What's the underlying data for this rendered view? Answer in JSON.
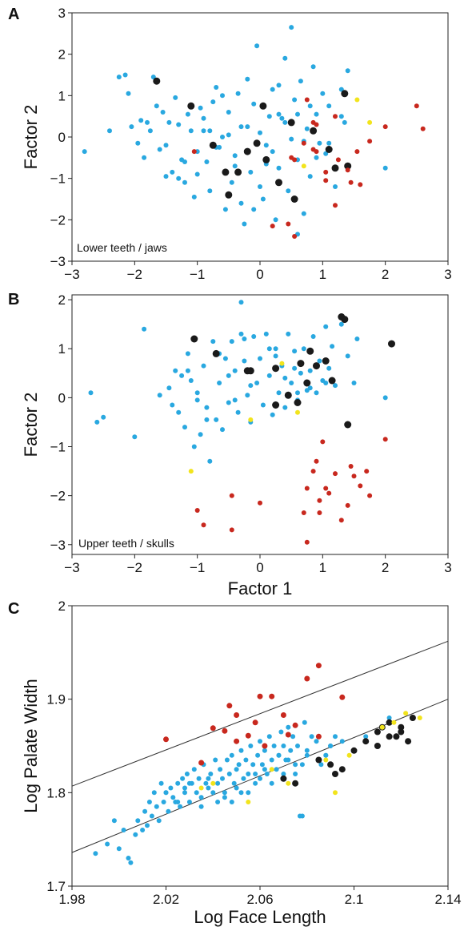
{
  "colors": {
    "blue": "#29a8e0",
    "black": "#1a1a1a",
    "red": "#c8281e",
    "yellow": "#f2e41c"
  },
  "chart_data": [
    {
      "panel": "A",
      "type": "scatter",
      "xlabel": "",
      "ylabel": "Factor 2",
      "annotation": "Lower teeth / jaws",
      "xlim": [
        -3,
        3
      ],
      "ylim": [
        -3,
        3
      ],
      "xticks": [
        "−3",
        "−2",
        "−1",
        "0",
        "1",
        "2",
        "3"
      ],
      "yticks": [
        "3",
        "2",
        "1",
        "0",
        "−1",
        "−2",
        "−3"
      ],
      "grid": false,
      "series": [
        {
          "color": "blue",
          "x": [
            -2.8,
            -2.4,
            -2.25,
            -2.15,
            -2.1,
            -2.05,
            -1.95,
            -1.9,
            -1.85,
            -1.75,
            -1.65,
            -1.6,
            -1.55,
            -1.5,
            -1.45,
            -1.4,
            -1.35,
            -1.3,
            -1.3,
            -1.25,
            -1.2,
            -1.15,
            -1.1,
            -1.05,
            -1.0,
            -0.95,
            -0.9,
            -0.85,
            -0.8,
            -0.75,
            -0.7,
            -0.65,
            -0.6,
            -0.55,
            -0.5,
            -0.45,
            -0.4,
            -0.35,
            -0.3,
            -0.25,
            -0.2,
            -0.15,
            -0.1,
            -0.05,
            0.0,
            0.05,
            0.1,
            0.15,
            0.2,
            0.25,
            0.3,
            0.35,
            0.4,
            0.45,
            0.5,
            0.55,
            0.6,
            0.65,
            0.7,
            0.75,
            0.8,
            0.85,
            0.9,
            0.95,
            1.0,
            1.05,
            1.1,
            1.2,
            1.3,
            1.35,
            1.4,
            2.0,
            -1.8,
            -1.0,
            -0.8,
            -0.6,
            -0.4,
            -0.2,
            0.0,
            0.2,
            0.4,
            0.6,
            1.1,
            1.3,
            -1.7,
            -1.5,
            -0.7,
            -0.3,
            0.1,
            0.3,
            0.5,
            0.7,
            0.9,
            -0.9,
            -0.5,
            -0.1,
            0.3,
            0.6,
            -1.2,
            0.8
          ],
          "y": [
            -0.35,
            0.15,
            1.45,
            1.5,
            1.05,
            0.25,
            -0.15,
            0.4,
            -0.5,
            0.15,
            0.75,
            -0.3,
            0.6,
            -0.95,
            0.35,
            -0.85,
            0.95,
            -1.0,
            0.3,
            -0.55,
            -1.1,
            0.55,
            0.15,
            -1.45,
            -0.9,
            0.7,
            0.45,
            -0.6,
            -1.3,
            0.85,
            1.2,
            -0.25,
            0.0,
            -1.75,
            0.6,
            -1.1,
            -0.45,
            1.05,
            0.25,
            -2.1,
            1.4,
            -0.85,
            0.8,
            2.2,
            0.1,
            -1.5,
            -0.2,
            0.5,
            1.15,
            -2.0,
            -0.75,
            0.45,
            1.9,
            -1.3,
            2.65,
            0.9,
            -0.55,
            1.35,
            -1.85,
            0.2,
            -0.95,
            1.7,
            0.55,
            -0.15,
            1.05,
            -0.4,
            0.75,
            -1.2,
            1.15,
            0.35,
            1.6,
            -0.75,
            0.35,
            -0.35,
            0.15,
            1.0,
            -0.7,
            0.25,
            -1.2,
            -0.35,
            0.35,
            0.55,
            -0.15,
            0.5,
            1.45,
            -0.2,
            -0.25,
            -1.6,
            -0.65,
            0.55,
            -0.05,
            -0.1,
            -0.5,
            0.15,
            0.05,
            -1.75,
            1.25,
            -2.35,
            -0.6,
            0.75
          ],
          "r": 3
        },
        {
          "color": "black",
          "x": [
            -1.65,
            -1.1,
            -0.75,
            -0.55,
            -0.5,
            -0.35,
            -0.2,
            -0.05,
            0.05,
            0.1,
            0.3,
            0.5,
            0.55,
            0.85,
            1.1,
            1.2,
            1.35,
            1.4
          ],
          "y": [
            1.35,
            0.75,
            -0.2,
            -0.85,
            -1.4,
            -0.85,
            -0.35,
            -0.15,
            0.75,
            -0.55,
            -1.1,
            0.35,
            -1.5,
            0.15,
            -0.3,
            -0.75,
            1.05,
            -0.7
          ],
          "r": 4.5
        },
        {
          "color": "red",
          "x": [
            0.45,
            0.5,
            0.55,
            0.55,
            0.7,
            0.75,
            0.85,
            0.9,
            0.9,
            1.05,
            1.2,
            1.2,
            1.25,
            1.4,
            1.45,
            1.55,
            1.6,
            1.75,
            2.0,
            2.5,
            2.6,
            0.2,
            0.85,
            1.05,
            -1.05
          ],
          "y": [
            -2.1,
            -0.5,
            -2.4,
            -0.55,
            -0.15,
            0.9,
            -0.3,
            -0.35,
            0.3,
            -1.05,
            0.5,
            -1.65,
            -0.55,
            -0.8,
            -1.1,
            -0.35,
            -1.15,
            -0.1,
            0.25,
            0.75,
            0.2,
            -2.15,
            0.35,
            -0.85,
            -0.35
          ],
          "r": 3
        },
        {
          "color": "yellow",
          "x": [
            0.7,
            1.55,
            1.75
          ],
          "y": [
            -0.7,
            0.9,
            0.35
          ],
          "r": 3
        }
      ]
    },
    {
      "panel": "B",
      "type": "scatter",
      "xlabel": "Factor 1",
      "ylabel": "Factor 2",
      "annotation": "Upper teeth / skulls",
      "xlim": [
        -3,
        3
      ],
      "ylim": [
        -3.2,
        2.1
      ],
      "xticks": [
        "−3",
        "−2",
        "−1",
        "0",
        "1",
        "2",
        "3"
      ],
      "yticks": [
        "2",
        "1",
        "0",
        "−1",
        "−2",
        "−3"
      ],
      "grid": false,
      "series": [
        {
          "color": "blue",
          "x": [
            -2.7,
            -2.6,
            -2.5,
            -2.0,
            -1.85,
            -1.6,
            -1.45,
            -1.4,
            -1.35,
            -1.3,
            -1.25,
            -1.2,
            -1.15,
            -1.1,
            -1.05,
            -1.0,
            -0.95,
            -0.9,
            -0.85,
            -0.8,
            -0.75,
            -0.7,
            -0.65,
            -0.6,
            -0.55,
            -0.5,
            -0.45,
            -0.4,
            -0.35,
            -0.3,
            -0.25,
            -0.2,
            -0.15,
            -0.1,
            -0.05,
            0.0,
            0.05,
            0.1,
            0.15,
            0.2,
            0.25,
            0.3,
            0.35,
            0.4,
            0.45,
            0.5,
            0.55,
            0.6,
            0.65,
            0.7,
            0.75,
            0.8,
            0.85,
            0.9,
            0.95,
            1.0,
            1.05,
            1.1,
            1.2,
            1.3,
            1.4,
            1.5,
            1.55,
            2.0,
            -0.3,
            -0.65,
            -1.0,
            0.4,
            0.8,
            1.15,
            -0.5,
            -0.15,
            0.25,
            0.6,
            -1.15,
            -0.85,
            -0.4,
            0.15,
            0.55,
            1.05,
            -0.25
          ],
          "y": [
            0.1,
            -0.5,
            -0.4,
            -0.8,
            1.4,
            0.05,
            0.2,
            -0.15,
            0.55,
            -0.3,
            0.45,
            -0.6,
            0.9,
            0.35,
            -1.0,
            0.1,
            -0.75,
            0.65,
            -0.2,
            -1.3,
            1.15,
            -0.45,
            0.3,
            -0.65,
            0.8,
            -0.1,
            1.15,
            0.55,
            -0.3,
            1.95,
            0.75,
            0.05,
            -0.5,
            1.25,
            0.3,
            0.8,
            -0.15,
            1.3,
            0.45,
            -0.35,
            1.0,
            0.1,
            0.65,
            -0.2,
            1.3,
            0.3,
            0.95,
            -0.05,
            0.5,
            1.0,
            0.15,
            0.55,
            1.25,
            0.1,
            0.75,
            0.35,
            1.45,
            0.6,
            0.25,
            1.5,
            0.85,
            0.3,
            1.2,
            0.0,
            1.3,
            0.9,
            -0.05,
            0.4,
            0.2,
            1.05,
            0.45,
            0.25,
            0.85,
            0.1,
            0.55,
            -0.45,
            -0.05,
            1.0,
            0.6,
            0.3,
            1.2
          ],
          "r": 3
        },
        {
          "color": "black",
          "x": [
            -1.05,
            -0.7,
            -0.2,
            -0.15,
            0.25,
            0.45,
            0.6,
            0.65,
            0.75,
            0.8,
            0.9,
            1.05,
            1.15,
            1.3,
            1.35,
            1.4,
            2.1,
            0.25
          ],
          "y": [
            1.2,
            0.9,
            0.55,
            0.55,
            0.6,
            0.05,
            -0.1,
            0.7,
            0.3,
            0.95,
            0.65,
            0.75,
            0.35,
            1.65,
            1.6,
            -0.55,
            1.1,
            -0.15
          ],
          "r": 4.5
        },
        {
          "color": "red",
          "x": [
            -1.0,
            -0.9,
            -0.45,
            -0.45,
            0.0,
            0.7,
            0.75,
            0.75,
            0.85,
            0.9,
            0.95,
            1.0,
            1.05,
            1.1,
            1.2,
            1.3,
            1.4,
            1.45,
            1.5,
            1.6,
            1.7,
            1.75,
            2.0,
            0.95
          ],
          "y": [
            -2.3,
            -2.6,
            -2.7,
            -2.0,
            -2.15,
            -2.35,
            -2.95,
            -1.85,
            -1.5,
            -1.3,
            -2.1,
            -0.9,
            -1.85,
            -1.95,
            -1.55,
            -2.5,
            -2.2,
            -1.4,
            -1.6,
            -1.8,
            -1.5,
            -2.0,
            -0.85,
            -2.35
          ],
          "r": 3
        },
        {
          "color": "yellow",
          "x": [
            -1.1,
            -0.15,
            0.35,
            0.6
          ],
          "y": [
            -1.5,
            -0.45,
            0.7,
            -0.3
          ],
          "r": 3
        }
      ]
    },
    {
      "panel": "C",
      "type": "scatter",
      "xlabel": "Log Face Length",
      "ylabel": "Log Palate Width",
      "xlim": [
        1.98,
        2.14
      ],
      "ylim": [
        1.7,
        2.0
      ],
      "xticks": [
        "1.98",
        "2.02",
        "2.06",
        "2.1",
        "2.14"
      ],
      "yticks": [
        "2",
        "1.9",
        "1.8",
        "1.7"
      ],
      "grid": false,
      "lines": [
        {
          "x": [
            1.98,
            2.14
          ],
          "y": [
            1.807,
            1.962
          ]
        },
        {
          "x": [
            1.98,
            2.14
          ],
          "y": [
            1.736,
            1.9
          ]
        }
      ],
      "series": [
        {
          "color": "blue",
          "x": [
            1.99,
            1.995,
            1.998,
            2.0,
            2.002,
            2.004,
            2.005,
            2.007,
            2.008,
            2.01,
            2.011,
            2.012,
            2.013,
            2.014,
            2.015,
            2.016,
            2.017,
            2.018,
            2.019,
            2.02,
            2.021,
            2.022,
            2.023,
            2.024,
            2.025,
            2.026,
            2.027,
            2.028,
            2.029,
            2.03,
            2.031,
            2.032,
            2.033,
            2.034,
            2.035,
            2.036,
            2.037,
            2.038,
            2.039,
            2.04,
            2.041,
            2.042,
            2.043,
            2.044,
            2.045,
            2.046,
            2.047,
            2.048,
            2.049,
            2.05,
            2.051,
            2.052,
            2.053,
            2.054,
            2.055,
            2.056,
            2.057,
            2.058,
            2.059,
            2.06,
            2.061,
            2.062,
            2.063,
            2.064,
            2.065,
            2.066,
            2.067,
            2.068,
            2.069,
            2.07,
            2.071,
            2.072,
            2.073,
            2.074,
            2.075,
            2.076,
            2.077,
            2.078,
            2.079,
            2.08,
            2.082,
            2.084,
            2.086,
            2.088,
            2.09,
            2.092,
            2.1,
            2.105,
            2.11,
            2.112,
            2.115,
            2.02,
            2.025,
            2.03,
            2.035,
            2.045,
            2.05,
            2.055,
            2.06,
            2.065,
            2.07,
            2.075,
            2.08,
            2.085,
            2.09,
            2.095,
            2.028,
            2.038,
            2.048,
            2.058,
            2.068,
            2.078,
            2.088,
            2.042,
            2.052,
            2.062,
            2.072
          ],
          "y": [
            1.735,
            1.745,
            1.77,
            1.74,
            1.76,
            1.73,
            1.725,
            1.755,
            1.77,
            1.76,
            1.78,
            1.765,
            1.79,
            1.775,
            1.8,
            1.785,
            1.77,
            1.81,
            1.79,
            1.8,
            1.78,
            1.805,
            1.795,
            1.79,
            1.81,
            1.785,
            1.815,
            1.8,
            1.82,
            1.79,
            1.81,
            1.825,
            1.8,
            1.815,
            1.795,
            1.83,
            1.81,
            1.805,
            1.82,
            1.8,
            1.835,
            1.81,
            1.825,
            1.815,
            1.8,
            1.835,
            1.82,
            1.84,
            1.81,
            1.825,
            1.83,
            1.845,
            1.815,
            1.835,
            1.82,
            1.85,
            1.83,
            1.81,
            1.84,
            1.855,
            1.83,
            1.845,
            1.82,
            1.86,
            1.835,
            1.85,
            1.825,
            1.84,
            1.865,
            1.85,
            1.835,
            1.87,
            1.845,
            1.86,
            1.82,
            1.85,
            1.775,
            1.775,
            1.875,
            1.84,
            1.86,
            1.855,
            1.83,
            1.84,
            1.85,
            1.86,
            1.845,
            1.86,
            1.85,
            1.87,
            1.88,
            1.8,
            1.79,
            1.81,
            1.785,
            1.795,
            1.805,
            1.8,
            1.815,
            1.81,
            1.82,
            1.83,
            1.845,
            1.835,
            1.85,
            1.855,
            1.805,
            1.815,
            1.79,
            1.82,
            1.84,
            1.83,
            1.84,
            1.79,
            1.8,
            1.825,
            1.835
          ],
          "r": 3
        },
        {
          "color": "black",
          "x": [
            2.07,
            2.075,
            2.085,
            2.09,
            2.092,
            2.095,
            2.1,
            2.105,
            2.11,
            2.112,
            2.115,
            2.118,
            2.12,
            2.123,
            2.125,
            2.11,
            2.115,
            2.12
          ],
          "y": [
            1.815,
            1.81,
            1.835,
            1.83,
            1.82,
            1.825,
            1.845,
            1.855,
            1.865,
            1.87,
            1.875,
            1.86,
            1.865,
            1.855,
            1.88,
            1.85,
            1.86,
            1.87
          ],
          "r": 4
        },
        {
          "color": "red",
          "x": [
            2.02,
            2.035,
            2.04,
            2.045,
            2.047,
            2.05,
            2.055,
            2.06,
            2.065,
            2.07,
            2.072,
            2.075,
            2.08,
            2.085,
            2.095,
            2.085,
            2.062,
            2.05,
            2.058
          ],
          "y": [
            1.857,
            1.832,
            1.869,
            1.866,
            1.893,
            1.883,
            1.861,
            1.903,
            1.903,
            1.883,
            1.862,
            1.872,
            1.922,
            1.936,
            1.902,
            1.86,
            1.85,
            1.855,
            1.875
          ],
          "r": 3.5
        },
        {
          "color": "yellow",
          "x": [
            2.035,
            2.04,
            2.055,
            2.065,
            2.072,
            2.088,
            2.092,
            2.098,
            2.112,
            2.117,
            2.122,
            2.128
          ],
          "y": [
            1.805,
            1.81,
            1.79,
            1.825,
            1.81,
            1.835,
            1.8,
            1.84,
            1.87,
            1.875,
            1.885,
            1.88
          ],
          "r": 3
        }
      ]
    }
  ]
}
